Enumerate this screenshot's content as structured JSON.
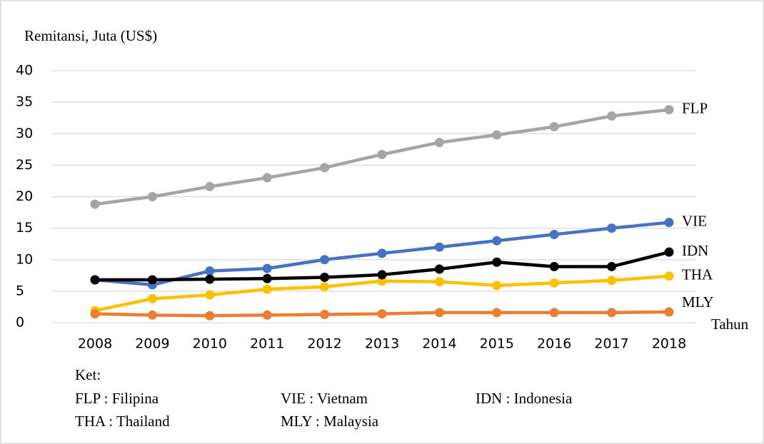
{
  "chart_data": {
    "type": "line",
    "y_label": "Remitansi, Juta (US$)",
    "x_label": "Tahun",
    "categories": [
      "2008",
      "2009",
      "2010",
      "2011",
      "2012",
      "2013",
      "2014",
      "2015",
      "2016",
      "2017",
      "2018"
    ],
    "series": [
      {
        "name": "FLP",
        "color": "#a5a5a5",
        "values": [
          18.8,
          20.0,
          21.6,
          23.0,
          24.6,
          26.7,
          28.6,
          29.8,
          31.1,
          32.8,
          33.8
        ]
      },
      {
        "name": "VIE",
        "color": "#4472c4",
        "values": [
          6.8,
          6.0,
          8.2,
          8.6,
          10.0,
          11.0,
          12.0,
          13.0,
          14.0,
          15.0,
          15.9
        ]
      },
      {
        "name": "THA",
        "color": "#ffc000",
        "values": [
          1.9,
          3.8,
          4.4,
          5.3,
          5.7,
          6.6,
          6.5,
          5.9,
          6.3,
          6.7,
          7.4
        ]
      },
      {
        "name": "MLY",
        "color": "#ed7d31",
        "values": [
          1.4,
          1.2,
          1.1,
          1.2,
          1.3,
          1.4,
          1.6,
          1.6,
          1.6,
          1.6,
          1.7
        ]
      },
      {
        "name": "IDN",
        "color": "#000000",
        "values": [
          6.8,
          6.8,
          6.9,
          7.0,
          7.2,
          7.6,
          8.5,
          9.6,
          8.9,
          8.9,
          11.2
        ]
      }
    ],
    "ylim": [
      0,
      40
    ],
    "yticks": [
      0,
      5,
      10,
      15,
      20,
      25,
      30,
      35,
      40
    ],
    "grid": true,
    "key_title": "Ket:",
    "key": [
      "FLP : Filipina",
      "VIE : Vietnam",
      "IDN : Indonesia",
      "THA : Thailand",
      "MLY : Malaysia"
    ]
  }
}
